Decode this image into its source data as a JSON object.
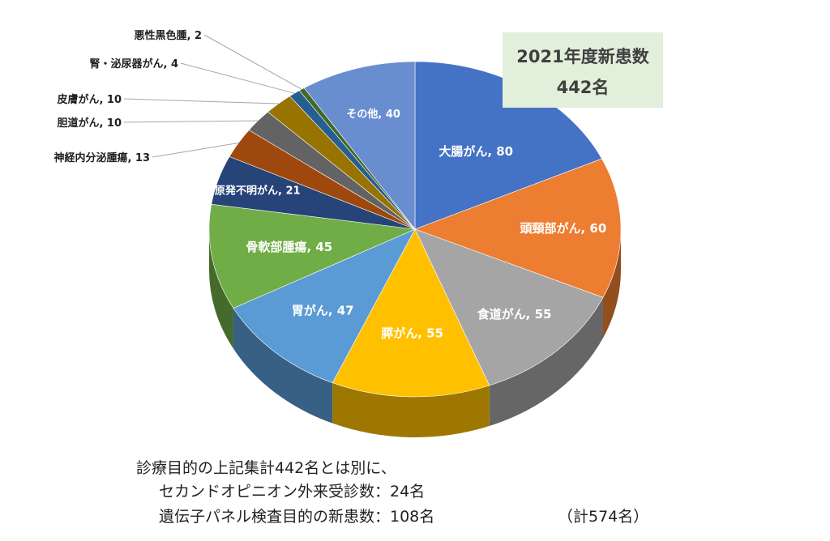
{
  "chart_data": {
    "type": "pie",
    "title": "2021年度新患数",
    "total_label": "442名",
    "slices": [
      {
        "name": "大腸がん",
        "value": 80,
        "label": "大腸がん, 80",
        "color": "#4472c4"
      },
      {
        "name": "頭頸部がん",
        "value": 60,
        "label": "頭頸部がん, 60",
        "color": "#ed7d31"
      },
      {
        "name": "食道がん",
        "value": 55,
        "label": "食道がん, 55",
        "color": "#a5a5a5"
      },
      {
        "name": "膵がん",
        "value": 55,
        "label": "膵がん, 55",
        "color": "#ffc000"
      },
      {
        "name": "胃がん",
        "value": 47,
        "label": "胃がん, 47",
        "color": "#5b9bd5"
      },
      {
        "name": "骨軟部腫瘍",
        "value": 45,
        "label": "骨軟部腫瘍, 45",
        "color": "#70ad47"
      },
      {
        "name": "原発不明がん",
        "value": 21,
        "label": "原発不明がん, 21",
        "color": "#264478"
      },
      {
        "name": "神経内分泌腫瘍",
        "value": 13,
        "label": "神経内分泌腫瘍, 13",
        "color": "#9e480e"
      },
      {
        "name": "胆道がん",
        "value": 10,
        "label": "胆道がん, 10",
        "color": "#636363"
      },
      {
        "name": "皮膚がん",
        "value": 10,
        "label": "皮膚がん, 10",
        "color": "#997300"
      },
      {
        "name": "腎・泌尿器がん",
        "value": 4,
        "label": "腎・泌尿器がん, 4",
        "color": "#255e91"
      },
      {
        "name": "悪性黒色腫",
        "value": 2,
        "label": "悪性黒色腫, 2",
        "color": "#43682b"
      },
      {
        "name": "その他",
        "value": 40,
        "label": "その他, 40",
        "color": "#698ed0"
      }
    ]
  },
  "notes": {
    "line1": "診療目的の上記集計442名とは別に、",
    "line2": "セカンドオピニオン外来受診数：24名",
    "line3": "遺伝子パネル検査目的の新患数：108名",
    "line3_total": "（計574名）"
  }
}
